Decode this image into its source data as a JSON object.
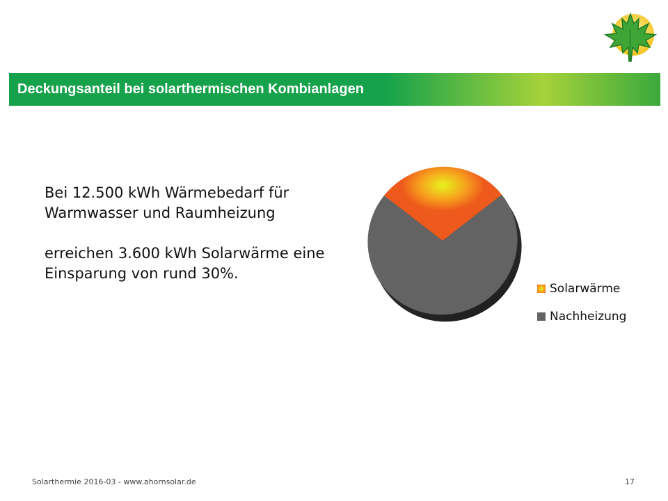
{
  "header": {
    "title": "Deckungsanteil bei solarthermischen Kombianlagen"
  },
  "body": {
    "paragraphs": [
      [
        "Bei 12.500 kWh Wärmebedarf für",
        "Warmwasser und Raumheizung"
      ],
      [
        "erreichen 3.600 kWh Solarwärme eine",
        "Einsparung von rund 30%."
      ]
    ]
  },
  "chart_data": {
    "type": "pie",
    "title": "",
    "categories": [
      "Solarwärme",
      "Nachheizung"
    ],
    "values": [
      3600,
      8900
    ],
    "colors": [
      "#f39a1e",
      "#636363"
    ],
    "legend_position": "right"
  },
  "footer": {
    "left": "Solarthermie 2016-03 - www.ahornsolar.de",
    "page_number": "17"
  },
  "icons": {
    "logo": "maple-leaf-sun-logo"
  }
}
